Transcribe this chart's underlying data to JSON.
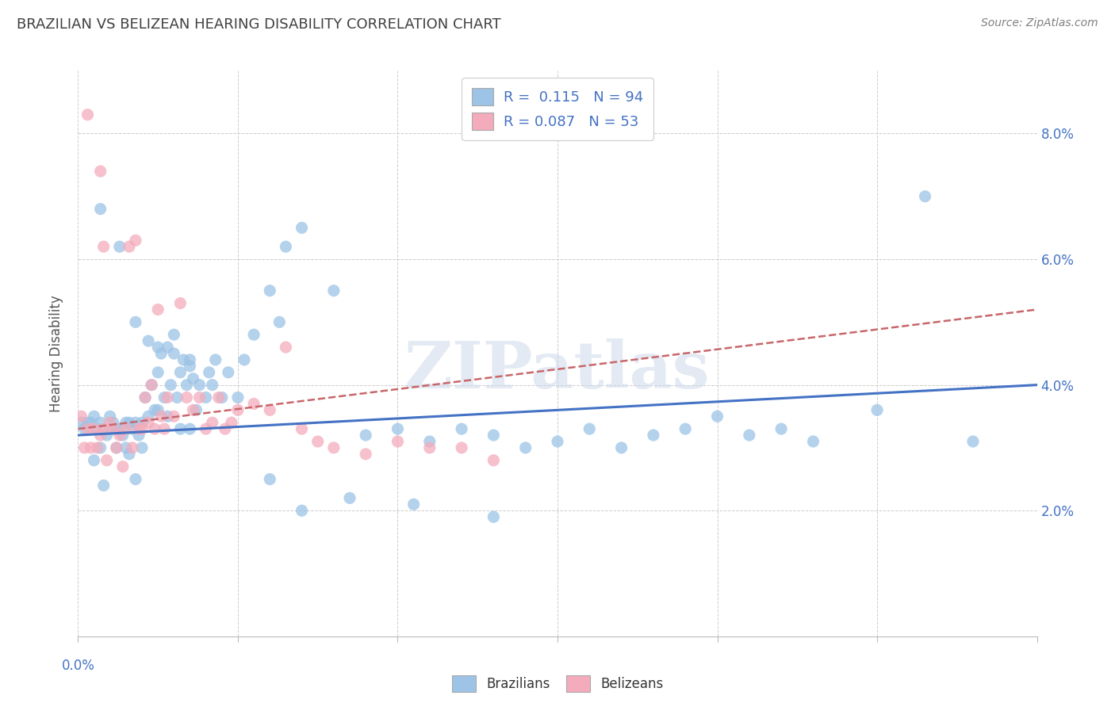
{
  "title": "BRAZILIAN VS BELIZEAN HEARING DISABILITY CORRELATION CHART",
  "source": "Source: ZipAtlas.com",
  "ylabel": "Hearing Disability",
  "xlim": [
    0.0,
    0.3
  ],
  "ylim": [
    0.0,
    0.09
  ],
  "yticks": [
    0.02,
    0.04,
    0.06,
    0.08
  ],
  "ytick_labels": [
    "2.0%",
    "4.0%",
    "6.0%",
    "8.0%"
  ],
  "xticks": [
    0.0,
    0.05,
    0.1,
    0.15,
    0.2,
    0.25,
    0.3
  ],
  "watermark": "ZIPatlas",
  "legend_R1": "0.115",
  "legend_N1": "94",
  "legend_R2": "0.087",
  "legend_N2": "53",
  "blue_color": "#9DC3E6",
  "pink_color": "#F4ABBB",
  "blue_line_color": "#4472C4",
  "pink_line_color": "#C9666A",
  "title_color": "#404040",
  "source_color": "#808080",
  "axis_label_color": "#4472C4",
  "background_color": "#FFFFFF",
  "blue_scatter_x": [
    0.001,
    0.002,
    0.003,
    0.004,
    0.005,
    0.005,
    0.006,
    0.007,
    0.007,
    0.008,
    0.009,
    0.01,
    0.01,
    0.011,
    0.012,
    0.012,
    0.013,
    0.014,
    0.015,
    0.015,
    0.016,
    0.016,
    0.017,
    0.018,
    0.018,
    0.019,
    0.02,
    0.02,
    0.021,
    0.022,
    0.023,
    0.024,
    0.025,
    0.025,
    0.026,
    0.027,
    0.028,
    0.028,
    0.029,
    0.03,
    0.031,
    0.032,
    0.032,
    0.033,
    0.034,
    0.035,
    0.035,
    0.036,
    0.037,
    0.038,
    0.04,
    0.041,
    0.042,
    0.043,
    0.045,
    0.047,
    0.05,
    0.052,
    0.055,
    0.06,
    0.063,
    0.065,
    0.07,
    0.08,
    0.09,
    0.1,
    0.11,
    0.12,
    0.13,
    0.14,
    0.15,
    0.16,
    0.17,
    0.18,
    0.19,
    0.2,
    0.21,
    0.22,
    0.23,
    0.25,
    0.265,
    0.28,
    0.007,
    0.013,
    0.018,
    0.022,
    0.025,
    0.03,
    0.035,
    0.06,
    0.07,
    0.085,
    0.105,
    0.13
  ],
  "blue_scatter_y": [
    0.034,
    0.033,
    0.034,
    0.034,
    0.035,
    0.028,
    0.033,
    0.03,
    0.034,
    0.024,
    0.032,
    0.033,
    0.035,
    0.034,
    0.033,
    0.03,
    0.033,
    0.032,
    0.034,
    0.03,
    0.034,
    0.029,
    0.033,
    0.034,
    0.025,
    0.032,
    0.034,
    0.03,
    0.038,
    0.035,
    0.04,
    0.036,
    0.042,
    0.036,
    0.045,
    0.038,
    0.046,
    0.035,
    0.04,
    0.045,
    0.038,
    0.042,
    0.033,
    0.044,
    0.04,
    0.043,
    0.033,
    0.041,
    0.036,
    0.04,
    0.038,
    0.042,
    0.04,
    0.044,
    0.038,
    0.042,
    0.038,
    0.044,
    0.048,
    0.055,
    0.05,
    0.062,
    0.065,
    0.055,
    0.032,
    0.033,
    0.031,
    0.033,
    0.032,
    0.03,
    0.031,
    0.033,
    0.03,
    0.032,
    0.033,
    0.035,
    0.032,
    0.033,
    0.031,
    0.036,
    0.07,
    0.031,
    0.068,
    0.062,
    0.05,
    0.047,
    0.046,
    0.048,
    0.044,
    0.025,
    0.02,
    0.022,
    0.021,
    0.019
  ],
  "pink_scatter_x": [
    0.001,
    0.002,
    0.003,
    0.003,
    0.004,
    0.005,
    0.006,
    0.007,
    0.007,
    0.008,
    0.008,
    0.009,
    0.01,
    0.011,
    0.012,
    0.013,
    0.014,
    0.015,
    0.016,
    0.017,
    0.018,
    0.019,
    0.02,
    0.021,
    0.022,
    0.023,
    0.024,
    0.025,
    0.026,
    0.027,
    0.028,
    0.03,
    0.032,
    0.034,
    0.036,
    0.038,
    0.04,
    0.042,
    0.044,
    0.046,
    0.048,
    0.05,
    0.055,
    0.06,
    0.065,
    0.07,
    0.075,
    0.08,
    0.09,
    0.1,
    0.11,
    0.12,
    0.13
  ],
  "pink_scatter_y": [
    0.035,
    0.03,
    0.033,
    0.083,
    0.03,
    0.033,
    0.03,
    0.032,
    0.074,
    0.033,
    0.062,
    0.028,
    0.034,
    0.033,
    0.03,
    0.032,
    0.027,
    0.033,
    0.062,
    0.03,
    0.063,
    0.033,
    0.033,
    0.038,
    0.034,
    0.04,
    0.033,
    0.052,
    0.035,
    0.033,
    0.038,
    0.035,
    0.053,
    0.038,
    0.036,
    0.038,
    0.033,
    0.034,
    0.038,
    0.033,
    0.034,
    0.036,
    0.037,
    0.036,
    0.046,
    0.033,
    0.031,
    0.03,
    0.029,
    0.031,
    0.03,
    0.03,
    0.028
  ],
  "blue_line_x": [
    0.0,
    0.3
  ],
  "blue_line_y": [
    0.032,
    0.04
  ],
  "pink_line_x": [
    0.0,
    0.3
  ],
  "pink_line_y": [
    0.033,
    0.052
  ]
}
